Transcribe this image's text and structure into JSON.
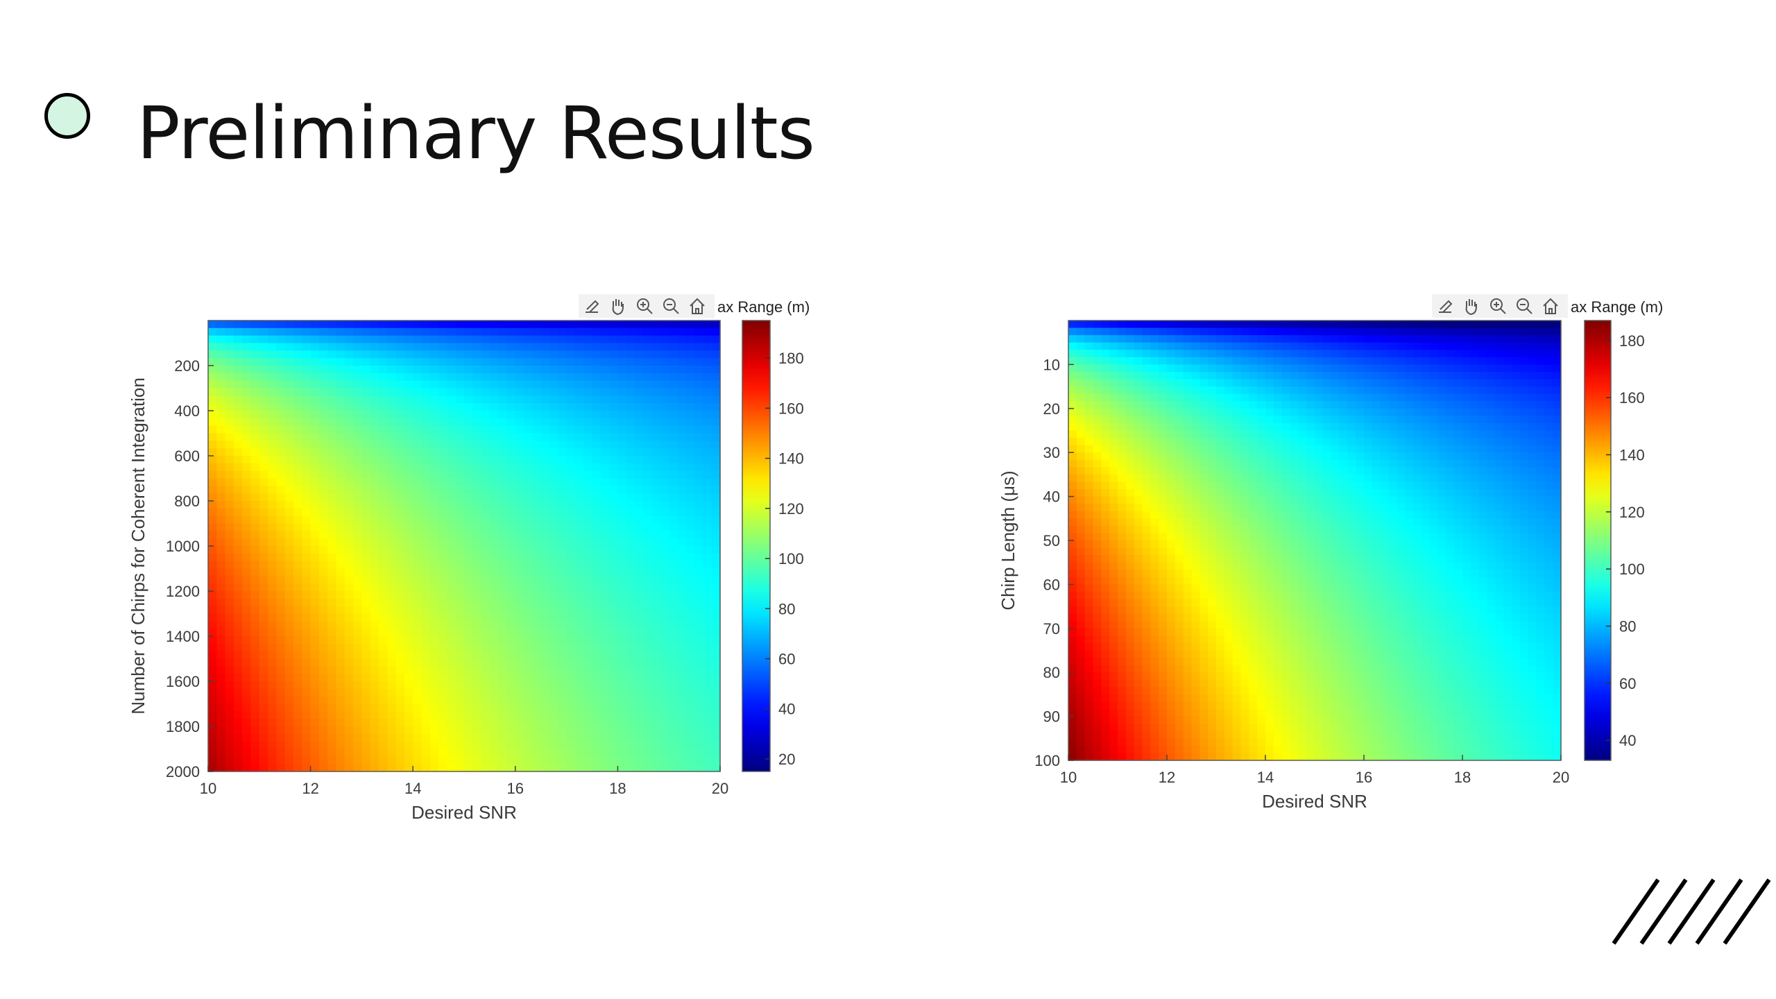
{
  "slide": {
    "title": "Preliminary Results"
  },
  "chart_data": [
    {
      "type": "heatmap",
      "xlabel": "Desired SNR",
      "ylabel": "Number of Chirps for Coherent Integration",
      "colorbar_label": "ax Range (m)",
      "colormap": "jet",
      "x_range": [
        10,
        20
      ],
      "y_range": [
        0,
        2000
      ],
      "y_reversed": true,
      "x_ticks": [
        "10",
        "12",
        "14",
        "16",
        "18",
        "20"
      ],
      "y_ticks": [
        "200",
        "400",
        "600",
        "800",
        "1000",
        "1200",
        "1400",
        "1600",
        "1800",
        "2000"
      ],
      "color_range": [
        15,
        195
      ],
      "colorbar_ticks": [
        "20",
        "40",
        "60",
        "80",
        "100",
        "120",
        "140",
        "160",
        "180"
      ],
      "value_model": "range(snr, n) ≈ 188 · (n/2000)^0.25 · (snr/10)^-1.0",
      "sample_values": [
        {
          "x": 10,
          "y": 2000,
          "value": 188
        },
        {
          "x": 20,
          "y": 2000,
          "value": 95
        },
        {
          "x": 10,
          "y": 400,
          "value": 126
        },
        {
          "x": 20,
          "y": 10,
          "value": 25
        }
      ],
      "toolbar_icons": [
        "edit-data-icon",
        "pan-hand-icon",
        "zoom-in-icon",
        "zoom-out-icon",
        "home-icon"
      ]
    },
    {
      "type": "heatmap",
      "xlabel": "Desired SNR",
      "ylabel": "Chirp Length (μs)",
      "colorbar_label": "ax Range (m)",
      "colormap": "jet",
      "x_range": [
        10,
        20
      ],
      "y_range": [
        0,
        100
      ],
      "y_reversed": true,
      "x_ticks": [
        "10",
        "12",
        "14",
        "16",
        "18",
        "20"
      ],
      "y_ticks": [
        "10",
        "20",
        "30",
        "40",
        "50",
        "60",
        "70",
        "80",
        "90",
        "100"
      ],
      "color_range": [
        33,
        187
      ],
      "colorbar_ticks": [
        "40",
        "60",
        "80",
        "100",
        "120",
        "140",
        "160",
        "180"
      ],
      "value_model": "range(snr, t) ≈ 186 · (t/100)^0.25 · (snr/10)^-1.0",
      "sample_values": [
        {
          "x": 10,
          "y": 100,
          "value": 186
        },
        {
          "x": 20,
          "y": 100,
          "value": 93
        },
        {
          "x": 10,
          "y": 20,
          "value": 124
        },
        {
          "x": 20,
          "y": 1,
          "value": 30
        }
      ],
      "toolbar_icons": [
        "edit-data-icon",
        "pan-hand-icon",
        "zoom-in-icon",
        "zoom-out-icon",
        "home-icon"
      ]
    }
  ]
}
